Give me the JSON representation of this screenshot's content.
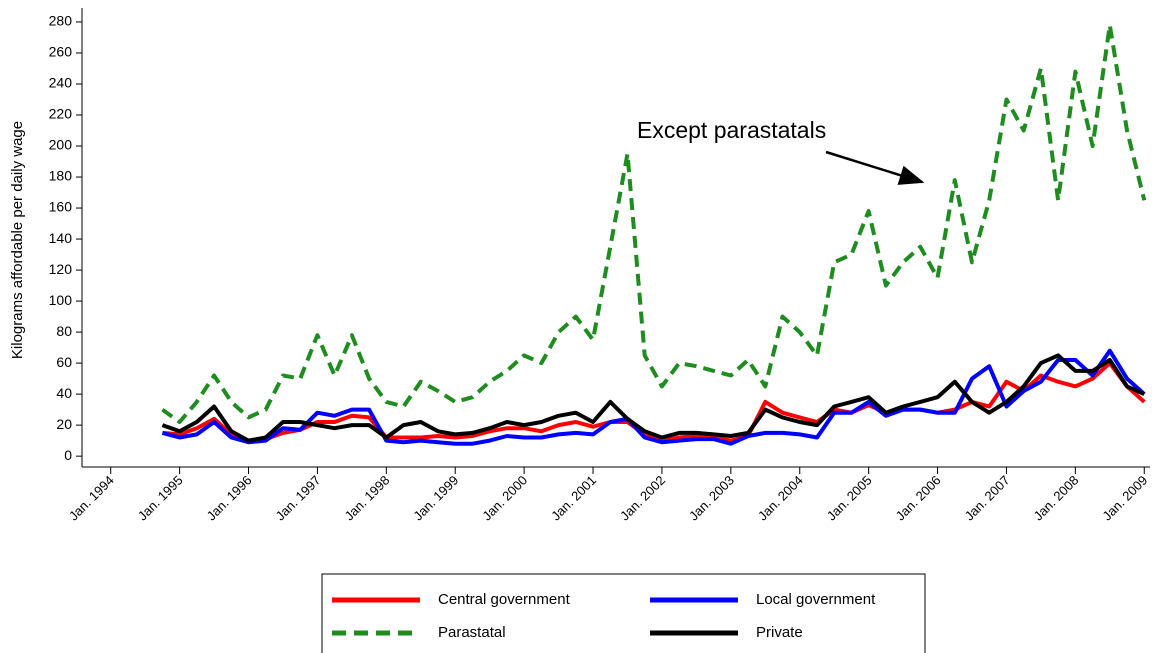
{
  "chart_data": {
    "type": "line",
    "y_label": "Kilograms affordable per daily wage",
    "annotation": "Except parastatals",
    "x": [
      "1994-10",
      "1995-01",
      "1995-04",
      "1995-07",
      "1995-10",
      "1996-01",
      "1996-04",
      "1996-07",
      "1996-10",
      "1997-01",
      "1997-04",
      "1997-07",
      "1997-10",
      "1998-01",
      "1998-04",
      "1998-07",
      "1998-10",
      "1999-01",
      "1999-04",
      "1999-07",
      "1999-10",
      "2000-01",
      "2000-04",
      "2000-07",
      "2000-10",
      "2001-01",
      "2001-04",
      "2001-07",
      "2001-10",
      "2002-01",
      "2002-04",
      "2002-07",
      "2002-10",
      "2003-01",
      "2003-04",
      "2003-07",
      "2003-10",
      "2004-01",
      "2004-04",
      "2004-07",
      "2004-10",
      "2005-01",
      "2005-04",
      "2005-07",
      "2005-10",
      "2006-01",
      "2006-04",
      "2006-07",
      "2006-10",
      "2007-01",
      "2007-04",
      "2007-07",
      "2007-10",
      "2008-01",
      "2008-04",
      "2008-07",
      "2008-10",
      "2009-01"
    ],
    "series": [
      {
        "name": "Central government",
        "color": "#ff0000",
        "dashed": false,
        "values": [
          15,
          14,
          18,
          24,
          14,
          9,
          11,
          15,
          17,
          22,
          22,
          26,
          25,
          12,
          12,
          12,
          13,
          12,
          13,
          16,
          18,
          18,
          16,
          20,
          22,
          19,
          22,
          22,
          14,
          10,
          12,
          13,
          12,
          10,
          13,
          35,
          28,
          25,
          22,
          30,
          28,
          33,
          28,
          30,
          30,
          28,
          30,
          35,
          32,
          48,
          42,
          52,
          48,
          45,
          50,
          60,
          45,
          35
        ]
      },
      {
        "name": "Local government",
        "color": "#0000ff",
        "dashed": false,
        "values": [
          15,
          12,
          14,
          22,
          12,
          9,
          10,
          18,
          17,
          28,
          26,
          30,
          30,
          10,
          9,
          10,
          9,
          8,
          8,
          10,
          13,
          12,
          12,
          14,
          15,
          14,
          22,
          24,
          12,
          9,
          10,
          11,
          11,
          8,
          13,
          15,
          15,
          14,
          12,
          28,
          28,
          35,
          26,
          30,
          30,
          28,
          28,
          50,
          58,
          32,
          42,
          48,
          62,
          62,
          52,
          68,
          50,
          40
        ]
      },
      {
        "name": "Parastatal",
        "color": "#1e8c1e",
        "dashed": true,
        "values": [
          30,
          22,
          35,
          52,
          35,
          25,
          30,
          52,
          50,
          78,
          52,
          78,
          50,
          35,
          32,
          48,
          42,
          35,
          38,
          48,
          55,
          65,
          60,
          80,
          90,
          75,
          135,
          195,
          65,
          45,
          60,
          58,
          55,
          52,
          62,
          45,
          90,
          80,
          65,
          125,
          130,
          158,
          110,
          125,
          135,
          115,
          178,
          125,
          165,
          230,
          210,
          250,
          165,
          248,
          200,
          278,
          210,
          165
        ]
      },
      {
        "name": "Private",
        "color": "#000000",
        "dashed": false,
        "values": [
          20,
          16,
          22,
          32,
          16,
          10,
          12,
          22,
          22,
          20,
          18,
          20,
          20,
          12,
          20,
          22,
          16,
          14,
          15,
          18,
          22,
          20,
          22,
          26,
          28,
          22,
          35,
          24,
          16,
          12,
          15,
          15,
          14,
          13,
          15,
          30,
          25,
          22,
          20,
          32,
          35,
          38,
          28,
          32,
          35,
          38,
          48,
          35,
          28,
          35,
          45,
          60,
          65,
          55,
          55,
          62,
          45,
          40
        ]
      }
    ],
    "xlim": [
      "1993-08",
      "2009-02"
    ],
    "xticks": [
      {
        "value": "1994-01",
        "label": "Jan. 1994"
      },
      {
        "value": "1995-01",
        "label": "Jan. 1995"
      },
      {
        "value": "1996-01",
        "label": "Jan. 1996"
      },
      {
        "value": "1997-01",
        "label": "Jan. 1997"
      },
      {
        "value": "1998-01",
        "label": "Jan. 1998"
      },
      {
        "value": "1999-01",
        "label": "Jan. 1999"
      },
      {
        "value": "2000-01",
        "label": "Jan. 2000"
      },
      {
        "value": "2001-01",
        "label": "Jan. 2001"
      },
      {
        "value": "2002-01",
        "label": "Jan. 2002"
      },
      {
        "value": "2003-01",
        "label": "Jan. 2003"
      },
      {
        "value": "2004-01",
        "label": "Jan. 2004"
      },
      {
        "value": "2005-01",
        "label": "Jan. 2005"
      },
      {
        "value": "2006-01",
        "label": "Jan. 2006"
      },
      {
        "value": "2007-01",
        "label": "Jan. 2007"
      },
      {
        "value": "2008-01",
        "label": "Jan. 2008"
      },
      {
        "value": "2009-01",
        "label": "Jan. 2009"
      }
    ],
    "ylim": [
      -7,
      289
    ],
    "yticks": [
      0,
      20,
      40,
      60,
      80,
      100,
      120,
      140,
      160,
      180,
      200,
      220,
      240,
      260,
      280
    ],
    "legend": "bottom"
  }
}
